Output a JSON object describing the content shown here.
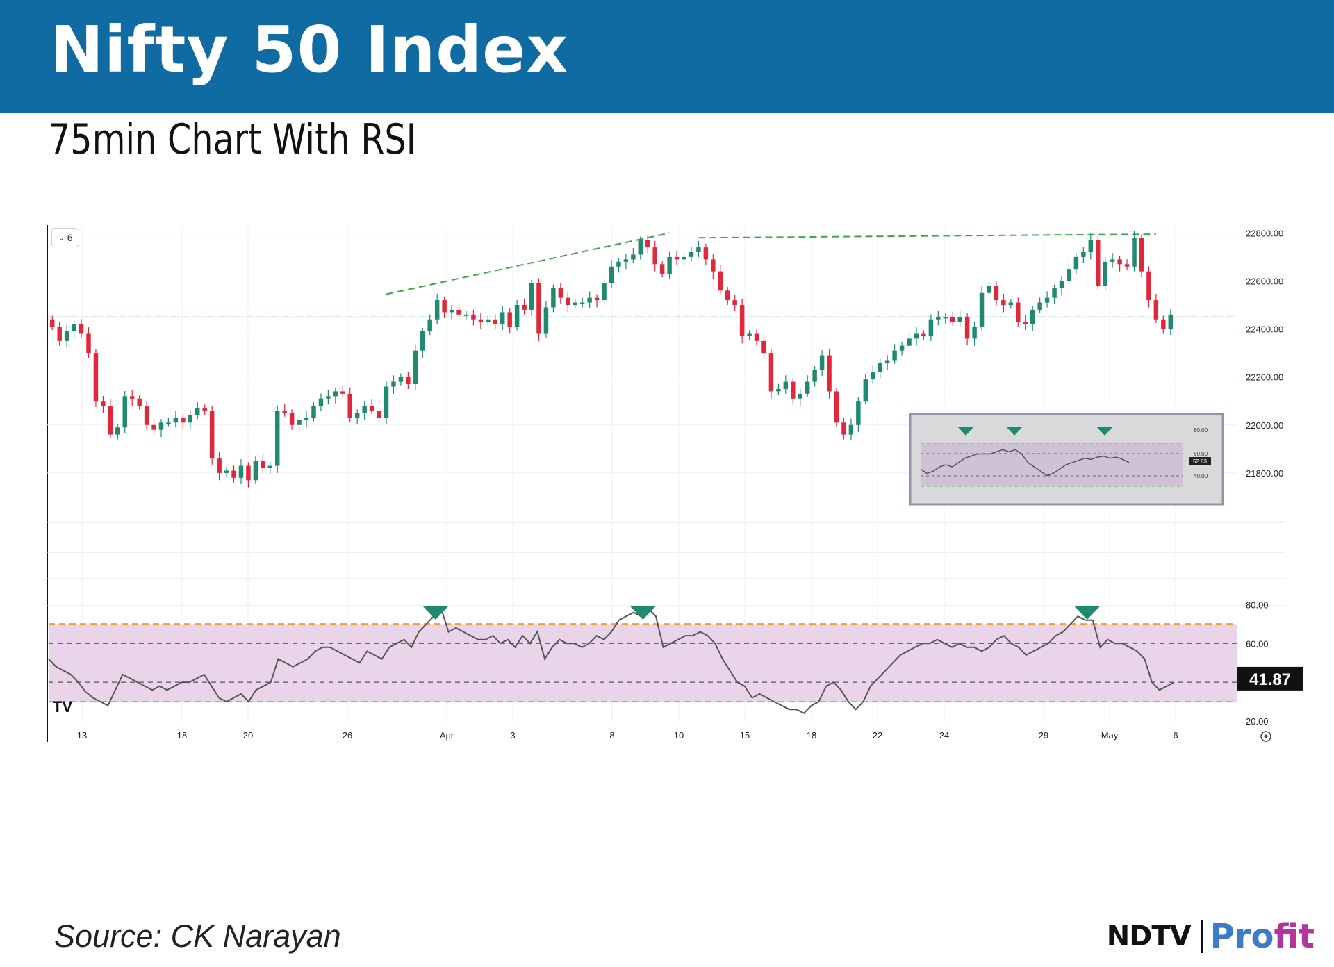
{
  "header": {
    "title": "Nifty 50 Index",
    "subtitle": "75min Chart With RSI"
  },
  "source": "Source: CK Narayan",
  "logo": {
    "left": "NDTV",
    "right_a": "Pro",
    "right_b": "fit"
  },
  "controls": {
    "collapse_label": "6",
    "chevron_icon": "chevron-down-icon",
    "settings_icon": "gear-icon",
    "tradingview_icon": "tradingview-logo-icon"
  },
  "colors": {
    "up": "#1f8a70",
    "down": "#e0283a",
    "banner": "#106ba3",
    "rsi_band": "#e9d4ea",
    "rsi_upper": "#f0a030",
    "rsi_lower": "#7cc47c",
    "trend": "#3aa845"
  },
  "chart_data": [
    {
      "type": "candlestick",
      "title": "",
      "x_tick_labels": [
        "13",
        "18",
        "20",
        "26",
        "Apr",
        "3",
        "8",
        "10",
        "15",
        "18",
        "22",
        "24",
        "29",
        "May",
        "6"
      ],
      "y_tick_labels": [
        "22800.00",
        "22600.00",
        "22400.00",
        "22200.00",
        "22000.00",
        "21800.00"
      ],
      "ylim": [
        21600,
        22830
      ],
      "current_price": 22450,
      "trendlines": [
        {
          "from": [
            46,
            22545
          ],
          "to": [
            85,
            22800
          ]
        },
        {
          "from": [
            89,
            22780
          ],
          "to": [
            152,
            22795
          ]
        }
      ],
      "series_closes": [
        22410,
        22350,
        22390,
        22420,
        22380,
        22300,
        22100,
        22080,
        21960,
        21990,
        22120,
        22110,
        22080,
        22000,
        21980,
        22010,
        22010,
        22030,
        22010,
        22040,
        22070,
        22060,
        21860,
        21800,
        21810,
        21780,
        21830,
        21770,
        21850,
        21820,
        21830,
        22060,
        22050,
        22000,
        22020,
        22030,
        22080,
        22110,
        22120,
        22140,
        22130,
        22030,
        22050,
        22080,
        22060,
        22030,
        22160,
        22180,
        22200,
        22170,
        22310,
        22390,
        22440,
        22520,
        22470,
        22480,
        22460,
        22460,
        22440,
        22430,
        22440,
        22420,
        22470,
        22410,
        22500,
        22480,
        22590,
        22380,
        22490,
        22570,
        22530,
        22500,
        22510,
        22510,
        22530,
        22520,
        22590,
        22660,
        22680,
        22690,
        22710,
        22770,
        22740,
        22670,
        22630,
        22700,
        22690,
        22700,
        22720,
        22740,
        22690,
        22640,
        22560,
        22520,
        22500,
        22370,
        22380,
        22350,
        22300,
        22140,
        22150,
        22180,
        22110,
        22130,
        22180,
        22230,
        22290,
        22140,
        22010,
        21960,
        22000,
        22100,
        22190,
        22220,
        22260,
        22270,
        22310,
        22330,
        22360,
        22380,
        22370,
        22440,
        22450,
        22450,
        22430,
        22450,
        22360,
        22410,
        22550,
        22580,
        22520,
        22500,
        22510,
        22430,
        22420,
        22480,
        22510,
        22530,
        22570,
        22600,
        22650,
        22700,
        22720,
        22770,
        22580,
        22680,
        22690,
        22670,
        22660,
        22780,
        22640,
        22520,
        22440,
        22400,
        22460
      ]
    },
    {
      "type": "line",
      "title": "",
      "y_tick_labels": [
        "80.00",
        "60.00",
        "20.00"
      ],
      "ylim": [
        20,
        83
      ],
      "upper_band": 70,
      "lower_band": 30,
      "midlines": [
        60,
        40
      ],
      "last_value_label": "41.87",
      "values": [
        52,
        48,
        46,
        44,
        40,
        35,
        32,
        30,
        28,
        36,
        44,
        42,
        40,
        38,
        36,
        38,
        36,
        38,
        40,
        40,
        42,
        44,
        38,
        32,
        30,
        32,
        34,
        30,
        36,
        38,
        40,
        52,
        50,
        48,
        50,
        52,
        56,
        58,
        58,
        56,
        54,
        52,
        50,
        56,
        54,
        52,
        58,
        60,
        62,
        58,
        66,
        70,
        74,
        78,
        66,
        68,
        66,
        64,
        62,
        62,
        64,
        60,
        62,
        58,
        64,
        60,
        66,
        52,
        58,
        62,
        60,
        60,
        58,
        60,
        64,
        62,
        66,
        72,
        74,
        76,
        74,
        78,
        74,
        58,
        60,
        62,
        64,
        64,
        66,
        64,
        60,
        52,
        46,
        40,
        38,
        32,
        34,
        32,
        30,
        28,
        26,
        26,
        24,
        28,
        30,
        38,
        40,
        36,
        30,
        26,
        30,
        38,
        42,
        46,
        50,
        54,
        56,
        58,
        60,
        60,
        62,
        60,
        58,
        60,
        58,
        58,
        56,
        58,
        62,
        64,
        60,
        58,
        54,
        56,
        58,
        60,
        64,
        66,
        70,
        74,
        72,
        72,
        58,
        62,
        60,
        60,
        58,
        56,
        52,
        40,
        36,
        38,
        40
      ]
    },
    {
      "type": "line",
      "title": "",
      "inset": true,
      "y_tick_labels": [
        "80.00",
        "60.00",
        "40.00"
      ],
      "last_value_label": "52.83",
      "values": [
        46,
        42,
        44,
        48,
        50,
        48,
        52,
        56,
        58,
        60,
        60,
        60,
        62,
        64,
        62,
        64,
        60,
        52,
        48,
        44,
        40,
        42,
        46,
        50,
        52,
        54,
        56,
        55,
        57,
        58,
        56,
        57,
        55,
        52
      ]
    }
  ]
}
